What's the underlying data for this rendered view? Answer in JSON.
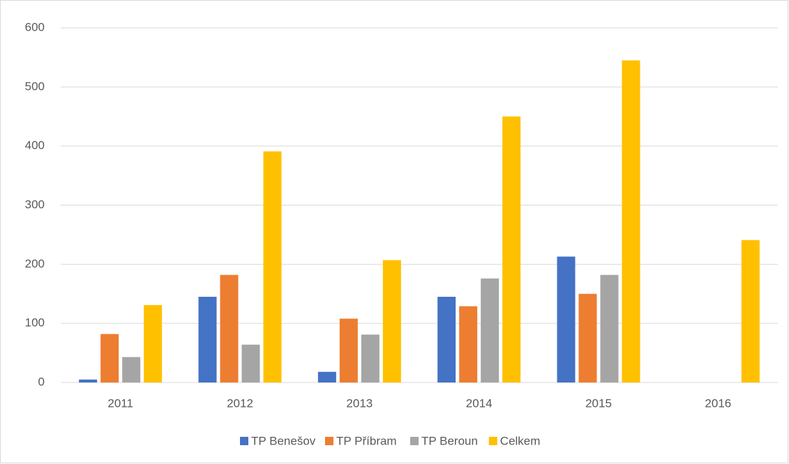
{
  "chart_data": {
    "type": "bar",
    "categories": [
      "2011",
      "2012",
      "2013",
      "2014",
      "2015",
      "2016"
    ],
    "series": [
      {
        "name": "TP Benešov",
        "color": "#4472c4",
        "values": [
          5,
          145,
          18,
          145,
          213,
          null
        ]
      },
      {
        "name": "TP Příbram",
        "color": "#ed7d31",
        "values": [
          82,
          182,
          108,
          129,
          150,
          null
        ]
      },
      {
        "name": "TP Beroun",
        "color": "#a5a5a5",
        "values": [
          43,
          64,
          81,
          176,
          182,
          null
        ]
      },
      {
        "name": "Celkem",
        "color": "#ffc000",
        "values": [
          131,
          391,
          207,
          450,
          545,
          241
        ]
      }
    ],
    "ylim": [
      0,
      600
    ],
    "yticks": [
      0,
      100,
      200,
      300,
      400,
      500,
      600
    ],
    "grid": true,
    "legend": "bottom"
  }
}
